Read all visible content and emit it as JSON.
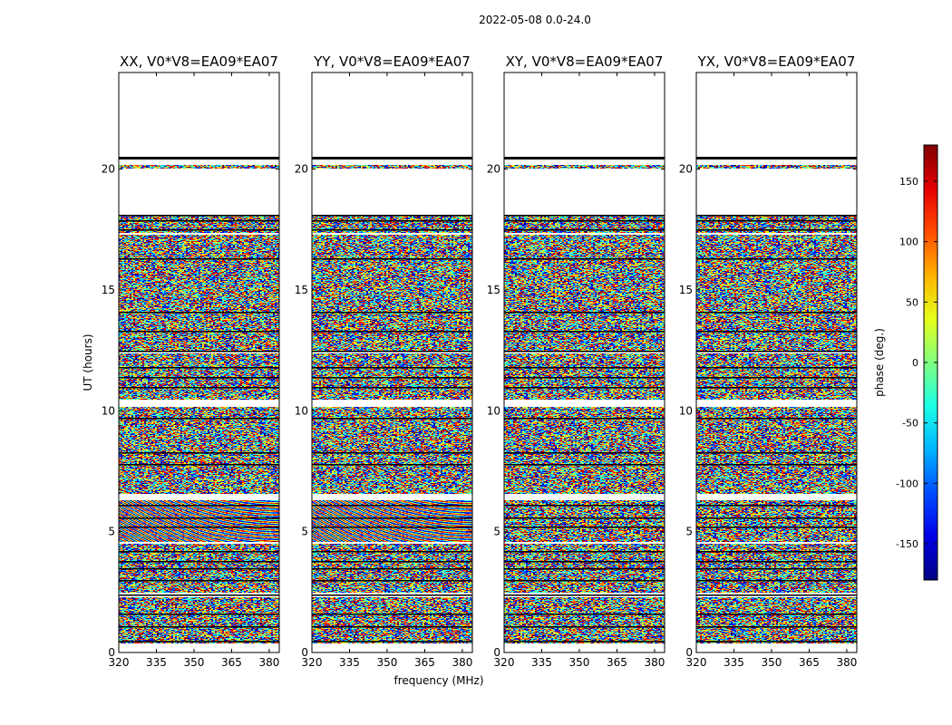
{
  "figure_title": "2022-05-08 0.0-24.0",
  "chart_data": {
    "type": "heatmap",
    "xlabel": "frequency (MHz)",
    "ylabel": "UT (hours)",
    "xlim": [
      320,
      384
    ],
    "ylim": [
      0,
      24
    ],
    "xticks": [
      320,
      335,
      350,
      365,
      380
    ],
    "yticks": [
      0,
      5,
      10,
      15,
      20
    ],
    "panels": [
      {
        "title": "XX, V0*V8=EA09*EA07",
        "fringe": true
      },
      {
        "title": "YY, V0*V8=EA09*EA07",
        "fringe": true
      },
      {
        "title": "XY, V0*V8=EA09*EA07",
        "fringe": false
      },
      {
        "title": "YX, V0*V8=EA09*EA07",
        "fringe": false
      }
    ],
    "data_segments_hours": [
      [
        0.4,
        2.3
      ],
      [
        2.5,
        4.5
      ],
      [
        4.6,
        6.3
      ],
      [
        6.6,
        10.2
      ],
      [
        10.5,
        12.4
      ],
      [
        12.5,
        17.3
      ],
      [
        17.4,
        18.1
      ],
      [
        20.05,
        20.2
      ]
    ],
    "flagged_lines_hours": [
      0.5,
      1.1,
      1.6,
      2.4,
      3.0,
      3.5,
      3.8,
      4.2,
      5.2,
      5.6,
      6.1,
      7.8,
      8.3,
      9.7,
      11.0,
      11.4,
      11.8,
      12.5,
      13.3,
      14.1,
      16.3,
      17.5,
      17.9,
      18.1,
      20.5
    ],
    "colorbar": {
      "label": "phase (deg.)",
      "range": [
        -180,
        180
      ],
      "ticks": [
        -150,
        -100,
        -50,
        0,
        50,
        100,
        150
      ],
      "colormap": "jet"
    }
  }
}
